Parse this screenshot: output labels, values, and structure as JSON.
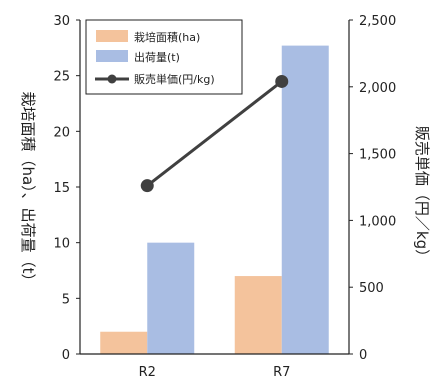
{
  "chart_data": {
    "type": "bar",
    "categories": [
      "R2",
      "R7"
    ],
    "series": [
      {
        "name": "栽培面積(ha)",
        "type": "bar",
        "axis": "left",
        "color": "#f4c39c",
        "values": [
          2,
          7
        ]
      },
      {
        "name": "出荷量(t)",
        "type": "bar",
        "axis": "left",
        "color": "#a9bde3",
        "values": [
          10,
          27.7
        ]
      },
      {
        "name": "販売単価(円/kg)",
        "type": "line",
        "axis": "right",
        "color": "#404040",
        "values": [
          1260,
          2040
        ]
      }
    ],
    "ylabel_left": "栽培面積（ha）、出荷量（t）",
    "ylabel_right": "販売単価（円／kg）",
    "ylim_left": [
      0,
      30
    ],
    "ylim_right": [
      0,
      2500
    ],
    "yticks_left": [
      "0",
      "5",
      "10",
      "15",
      "20",
      "25",
      "30"
    ],
    "yticks_right": [
      "0",
      "500",
      "1,000",
      "1,500",
      "2,000",
      "2,500"
    ],
    "legend_position": "top-left",
    "grid": false
  }
}
